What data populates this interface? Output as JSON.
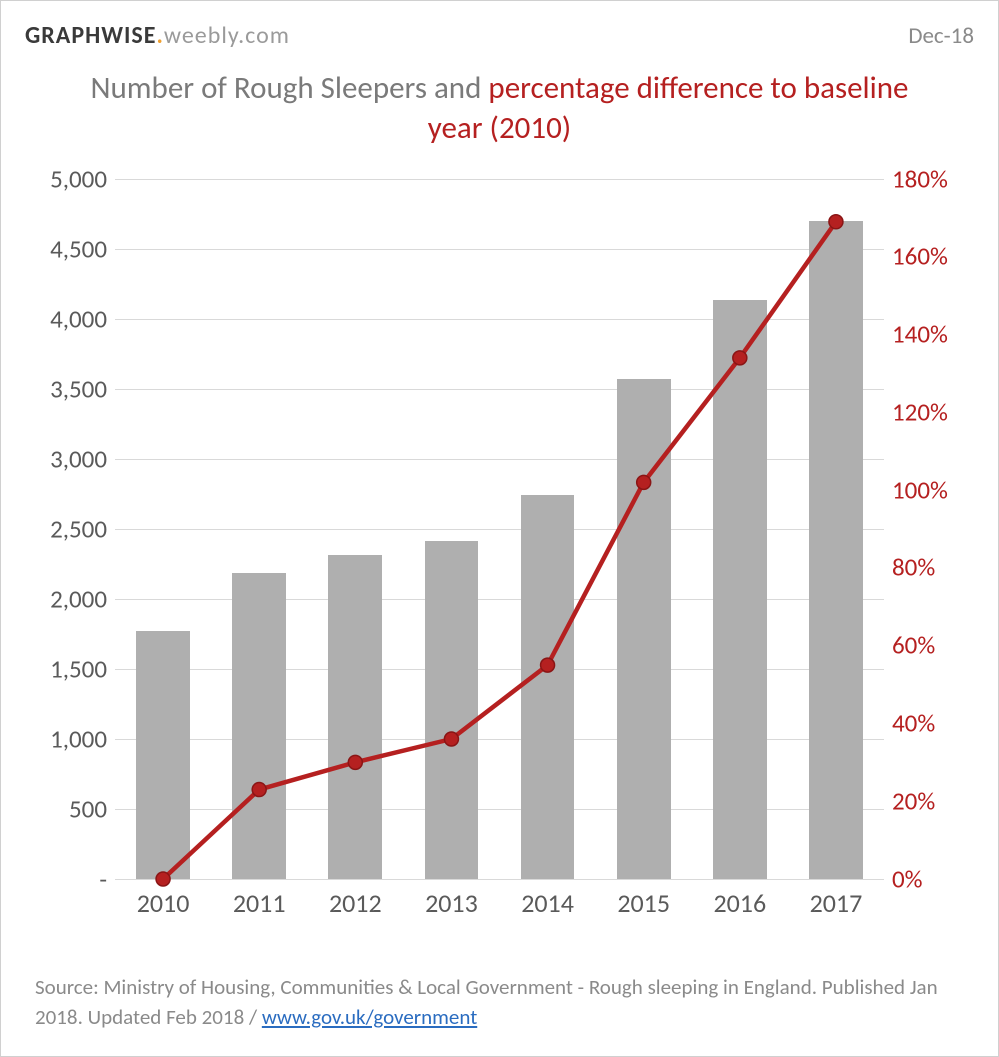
{
  "header": {
    "brand_bold": "GRAPHWISE",
    "brand_domain": "weebly.com",
    "date": "Dec-18"
  },
  "title": {
    "part1": "Number of Rough Sleepers",
    "and": " and ",
    "part2": "percentage difference to baseline year (2010)"
  },
  "chart": {
    "type": "bar+line",
    "categories": [
      "2010",
      "2011",
      "2012",
      "2013",
      "2014",
      "2015",
      "2016",
      "2017"
    ],
    "bars": {
      "values": [
        1770,
        2180,
        2310,
        2410,
        2740,
        3570,
        4130,
        4700
      ],
      "color": "#afafaf",
      "width_frac": 0.56
    },
    "line": {
      "values": [
        0,
        23,
        30,
        36,
        55,
        102,
        134,
        169
      ],
      "color": "#b52020",
      "stroke_width": 4.5,
      "marker_radius": 7,
      "marker_fill": "#b52020",
      "marker_stroke": "#8a1515"
    },
    "y_left": {
      "min": 0,
      "max": 5000,
      "step": 500,
      "labels": [
        "-",
        "500",
        "1,000",
        "1,500",
        "2,000",
        "2,500",
        "3,000",
        "3,500",
        "4,000",
        "4,500",
        "5,000"
      ],
      "color": "#5a5a5a",
      "fontsize": 25
    },
    "y_right": {
      "min": 0,
      "max": 180,
      "step": 20,
      "labels": [
        "0%",
        "20%",
        "40%",
        "60%",
        "80%",
        "100%",
        "120%",
        "140%",
        "160%",
        "180%"
      ],
      "color": "#b52020",
      "fontsize": 25
    },
    "x_fontsize": 26,
    "grid_color": "#d9d9d9",
    "background_color": "#ffffff"
  },
  "source": {
    "text_prefix": "Source: Ministry of Housing, Communities & Local Government - Rough sleeping in England. Published Jan 2018. Updated Feb 2018 / ",
    "link_text": "www.gov.uk/government",
    "link_href": "https://www.gov.uk/government"
  }
}
